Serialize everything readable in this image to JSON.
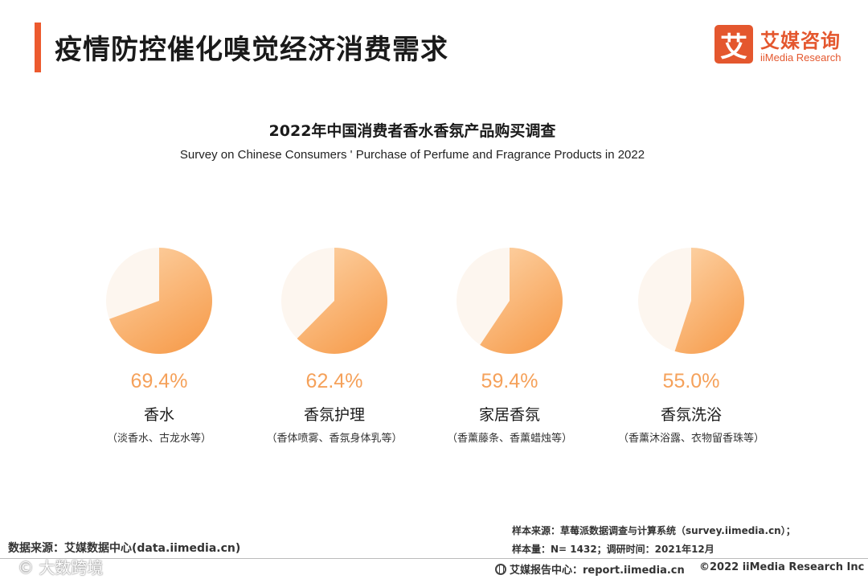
{
  "page": {
    "title": "疫情防控催化嗅觉经济消费需求"
  },
  "logo": {
    "mark": "艾",
    "cn": "艾媒咨询",
    "en": "iiMedia Research"
  },
  "colors": {
    "accent": "#ec5a2e",
    "pie_gradient_light": "#fdd4a8",
    "pie_gradient_dark": "#f7a154",
    "pie_background": "#fdf6ef",
    "percent_text": "#f5a15a"
  },
  "chart_data": {
    "type": "pie",
    "title": "2022年中国消费者香水香氛产品购买调查",
    "subtitle": "Survey on Chinese Consumers ' Purchase of Perfume and Fragrance Products in 2022",
    "unit": "%",
    "categories": [
      {
        "name": "香水",
        "description": "（淡香水、古龙水等）",
        "value": 69.4,
        "label": "69.4%"
      },
      {
        "name": "香氛护理",
        "description": "（香体喷雾、香氛身体乳等）",
        "value": 62.4,
        "label": "62.4%"
      },
      {
        "name": "家居香氛",
        "description": "（香薰藤条、香薰蜡烛等）",
        "value": 59.4,
        "label": "59.4%"
      },
      {
        "name": "香氛洗浴",
        "description": "（香薰沐浴露、衣物留香珠等）",
        "value": 55.0,
        "label": "55.0%"
      }
    ]
  },
  "footer": {
    "data_source": "数据来源：艾媒数据中心(data.iimedia.cn)",
    "watermark": "© 大数跨境",
    "sample_source": "样本来源：草莓派数据调查与计算系统（survey.iimedia.cn）；",
    "sample_size": "样本量：N= 1432；调研时间：2021年12月",
    "report_center": "艾媒报告中心：report.iimedia.cn",
    "copyright": "©2022  iiMedia Research  Inc"
  }
}
